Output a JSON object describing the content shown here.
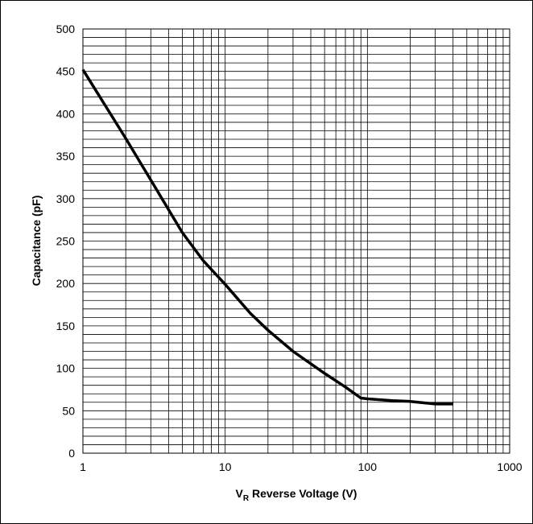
{
  "chart_data": {
    "type": "line",
    "x_scale": "log",
    "grid": true,
    "xlim": [
      1,
      1000
    ],
    "ylim": [
      0,
      500
    ],
    "x_ticks": [
      {
        "value": 1,
        "label": "1"
      },
      {
        "value": 10,
        "label": "10"
      },
      {
        "value": 100,
        "label": "100"
      },
      {
        "value": 1000,
        "label": "1000"
      }
    ],
    "y_ticks": [
      {
        "value": 0,
        "label": "0"
      },
      {
        "value": 50,
        "label": "50"
      },
      {
        "value": 100,
        "label": "100"
      },
      {
        "value": 150,
        "label": "150"
      },
      {
        "value": 200,
        "label": "200"
      },
      {
        "value": 250,
        "label": "250"
      },
      {
        "value": 300,
        "label": "300"
      },
      {
        "value": 350,
        "label": "350"
      },
      {
        "value": 400,
        "label": "400"
      },
      {
        "value": 450,
        "label": "450"
      },
      {
        "value": 500,
        "label": "500"
      }
    ],
    "ylabel": "Capacitance (pF)",
    "xlabel_main": "V",
    "xlabel_sub": "R",
    "xlabel_rest": " Reverse Voltage (V)",
    "series": [
      {
        "x": [
          1,
          2,
          3,
          4,
          5,
          7,
          10,
          15,
          20,
          30,
          50,
          70,
          90,
          100,
          150,
          200,
          300,
          400
        ],
        "y": [
          452,
          371,
          322,
          287,
          260,
          227,
          199,
          165,
          145,
          120,
          94,
          78,
          65,
          64,
          62,
          61,
          58,
          58
        ]
      }
    ]
  }
}
